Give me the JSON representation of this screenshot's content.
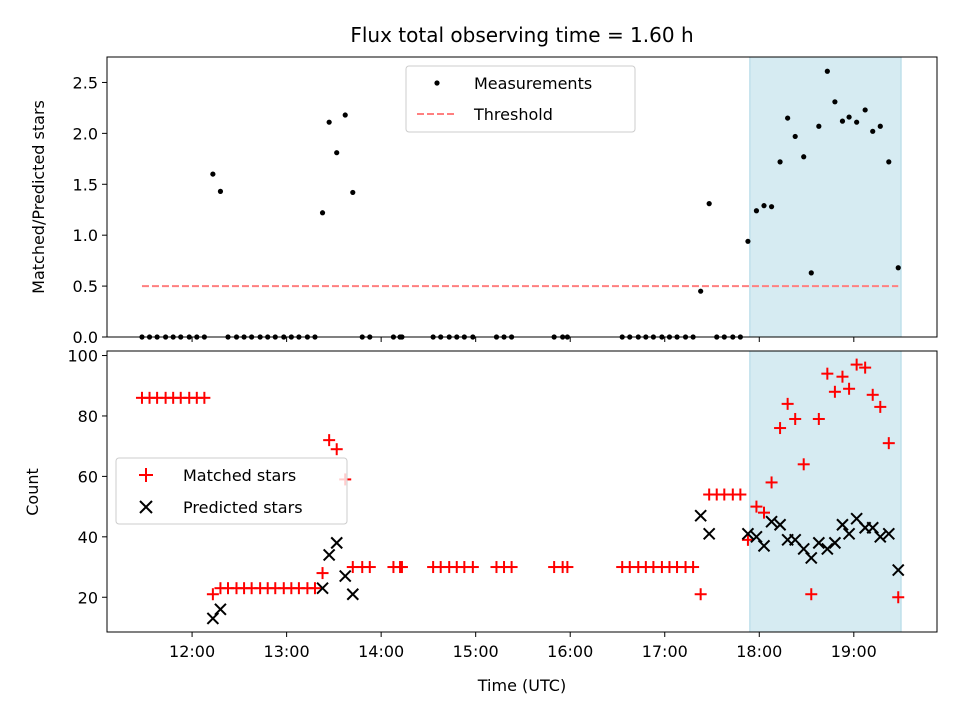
{
  "chart_data": [
    {
      "type": "scatter",
      "panel": "top",
      "title": "Flux total observing time = 1.60 h",
      "xlabel": "",
      "ylabel": "Matched/Predicted stars",
      "x_unit": "hours (UTC)",
      "xlim": [
        11.1,
        19.88
      ],
      "ylim": [
        0,
        2.75
      ],
      "yticks": [
        0.0,
        0.5,
        1.0,
        1.5,
        2.0,
        2.5
      ],
      "ytick_labels": [
        "0.0",
        "0.5",
        "1.0",
        "1.5",
        "2.0",
        "2.5"
      ],
      "highlight_span": {
        "x0": 17.9,
        "x1": 19.5,
        "color": "#add8e6"
      },
      "legend": {
        "position": "top-center",
        "entries": [
          "Measurements",
          "Threshold"
        ]
      },
      "series": [
        {
          "name": "Measurements",
          "color": "#000000",
          "marker": "dot",
          "points": [
            [
              11.47,
              0
            ],
            [
              11.55,
              0
            ],
            [
              11.63,
              0
            ],
            [
              11.72,
              0
            ],
            [
              11.8,
              0
            ],
            [
              11.88,
              0
            ],
            [
              11.97,
              0
            ],
            [
              12.05,
              0
            ],
            [
              12.13,
              0
            ],
            [
              12.22,
              1.6
            ],
            [
              12.3,
              1.43
            ],
            [
              12.38,
              0
            ],
            [
              12.47,
              0
            ],
            [
              12.55,
              0
            ],
            [
              12.63,
              0
            ],
            [
              12.72,
              0
            ],
            [
              12.8,
              0
            ],
            [
              12.88,
              0
            ],
            [
              12.97,
              0
            ],
            [
              13.05,
              0
            ],
            [
              13.13,
              0
            ],
            [
              13.22,
              0
            ],
            [
              13.3,
              0
            ],
            [
              13.38,
              1.22
            ],
            [
              13.45,
              2.11
            ],
            [
              13.53,
              1.81
            ],
            [
              13.62,
              2.18
            ],
            [
              13.7,
              1.42
            ],
            [
              13.8,
              0
            ],
            [
              13.88,
              0
            ],
            [
              14.13,
              0
            ],
            [
              14.2,
              0
            ],
            [
              14.22,
              0
            ],
            [
              14.55,
              0
            ],
            [
              14.63,
              0
            ],
            [
              14.72,
              0
            ],
            [
              14.8,
              0
            ],
            [
              14.88,
              0
            ],
            [
              14.97,
              0
            ],
            [
              15.22,
              0
            ],
            [
              15.3,
              0
            ],
            [
              15.38,
              0
            ],
            [
              15.83,
              0
            ],
            [
              15.92,
              0
            ],
            [
              15.97,
              0
            ],
            [
              16.55,
              0
            ],
            [
              16.63,
              0
            ],
            [
              16.72,
              0
            ],
            [
              16.8,
              0
            ],
            [
              16.88,
              0
            ],
            [
              16.97,
              0
            ],
            [
              17.05,
              0
            ],
            [
              17.13,
              0
            ],
            [
              17.22,
              0
            ],
            [
              17.3,
              0
            ],
            [
              17.38,
              0.45
            ],
            [
              17.47,
              1.31
            ],
            [
              17.55,
              0
            ],
            [
              17.63,
              0
            ],
            [
              17.72,
              0
            ],
            [
              17.8,
              0
            ],
            [
              17.88,
              0.94
            ],
            [
              17.97,
              1.24
            ],
            [
              18.05,
              1.29
            ],
            [
              18.13,
              1.28
            ],
            [
              18.22,
              1.72
            ],
            [
              18.3,
              2.15
            ],
            [
              18.38,
              1.97
            ],
            [
              18.47,
              1.77
            ],
            [
              18.55,
              0.63
            ],
            [
              18.63,
              2.07
            ],
            [
              18.72,
              2.61
            ],
            [
              18.8,
              2.31
            ],
            [
              18.88,
              2.12
            ],
            [
              18.95,
              2.16
            ],
            [
              19.03,
              2.11
            ],
            [
              19.12,
              2.23
            ],
            [
              19.2,
              2.02
            ],
            [
              19.28,
              2.07
            ],
            [
              19.37,
              1.72
            ],
            [
              19.47,
              0.68
            ]
          ]
        },
        {
          "name": "Threshold",
          "color": "#ff7f7f",
          "style": "dashed",
          "x": [
            11.47,
            19.47
          ],
          "y": [
            0.5,
            0.5
          ]
        }
      ]
    },
    {
      "type": "scatter",
      "panel": "bottom",
      "xlabel": "Time (UTC)",
      "ylabel": "Count",
      "xlim": [
        11.1,
        19.88
      ],
      "ylim": [
        8.5,
        101.5
      ],
      "xticks": [
        12,
        13,
        14,
        15,
        16,
        17,
        18,
        19
      ],
      "xtick_labels": [
        "12:00",
        "13:00",
        "14:00",
        "15:00",
        "16:00",
        "17:00",
        "18:00",
        "19:00"
      ],
      "yticks": [
        20,
        40,
        60,
        80,
        100
      ],
      "ytick_labels": [
        "20",
        "40",
        "60",
        "80",
        "100"
      ],
      "highlight_span": {
        "x0": 17.9,
        "x1": 19.5,
        "color": "#add8e6"
      },
      "legend": {
        "position": "center-left",
        "entries": [
          "Matched stars",
          "Predicted stars"
        ]
      },
      "series": [
        {
          "name": "Matched stars",
          "color": "#ff0000",
          "marker": "plus",
          "points": [
            [
              11.47,
              86
            ],
            [
              11.55,
              86
            ],
            [
              11.63,
              86
            ],
            [
              11.72,
              86
            ],
            [
              11.8,
              86
            ],
            [
              11.88,
              86
            ],
            [
              11.97,
              86
            ],
            [
              12.05,
              86
            ],
            [
              12.13,
              86
            ],
            [
              12.22,
              21
            ],
            [
              12.3,
              23
            ],
            [
              12.38,
              23
            ],
            [
              12.47,
              23
            ],
            [
              12.55,
              23
            ],
            [
              12.63,
              23
            ],
            [
              12.72,
              23
            ],
            [
              12.8,
              23
            ],
            [
              12.88,
              23
            ],
            [
              12.97,
              23
            ],
            [
              13.05,
              23
            ],
            [
              13.13,
              23
            ],
            [
              13.22,
              23
            ],
            [
              13.3,
              23
            ],
            [
              13.38,
              28
            ],
            [
              13.45,
              72
            ],
            [
              13.53,
              69
            ],
            [
              13.62,
              59
            ],
            [
              13.7,
              30
            ],
            [
              13.8,
              30
            ],
            [
              13.88,
              30
            ],
            [
              14.13,
              30
            ],
            [
              14.2,
              30
            ],
            [
              14.22,
              30
            ],
            [
              14.55,
              30
            ],
            [
              14.63,
              30
            ],
            [
              14.72,
              30
            ],
            [
              14.8,
              30
            ],
            [
              14.88,
              30
            ],
            [
              14.97,
              30
            ],
            [
              15.22,
              30
            ],
            [
              15.3,
              30
            ],
            [
              15.38,
              30
            ],
            [
              15.83,
              30
            ],
            [
              15.92,
              30
            ],
            [
              15.97,
              30
            ],
            [
              16.55,
              30
            ],
            [
              16.63,
              30
            ],
            [
              16.72,
              30
            ],
            [
              16.8,
              30
            ],
            [
              16.88,
              30
            ],
            [
              16.97,
              30
            ],
            [
              17.05,
              30
            ],
            [
              17.13,
              30
            ],
            [
              17.22,
              30
            ],
            [
              17.3,
              30
            ],
            [
              17.38,
              21
            ],
            [
              17.47,
              54
            ],
            [
              17.55,
              54
            ],
            [
              17.63,
              54
            ],
            [
              17.72,
              54
            ],
            [
              17.8,
              54
            ],
            [
              17.88,
              39
            ],
            [
              17.97,
              50
            ],
            [
              18.05,
              48
            ],
            [
              18.13,
              58
            ],
            [
              18.22,
              76
            ],
            [
              18.3,
              84
            ],
            [
              18.38,
              79
            ],
            [
              18.47,
              64
            ],
            [
              18.55,
              21
            ],
            [
              18.63,
              79
            ],
            [
              18.72,
              94
            ],
            [
              18.8,
              88
            ],
            [
              18.88,
              93
            ],
            [
              18.95,
              89
            ],
            [
              19.03,
              97
            ],
            [
              19.12,
              96
            ],
            [
              19.2,
              87
            ],
            [
              19.28,
              83
            ],
            [
              19.37,
              71
            ],
            [
              19.47,
              20
            ]
          ]
        },
        {
          "name": "Predicted stars",
          "color": "#000000",
          "marker": "x",
          "points": [
            [
              12.22,
              13
            ],
            [
              12.3,
              16
            ],
            [
              13.38,
              23
            ],
            [
              13.45,
              34
            ],
            [
              13.53,
              38
            ],
            [
              13.62,
              27
            ],
            [
              13.7,
              21
            ],
            [
              17.38,
              47
            ],
            [
              17.47,
              41
            ],
            [
              17.88,
              41
            ],
            [
              17.97,
              40
            ],
            [
              18.05,
              37
            ],
            [
              18.13,
              45
            ],
            [
              18.22,
              44
            ],
            [
              18.3,
              39
            ],
            [
              18.38,
              39
            ],
            [
              18.47,
              36
            ],
            [
              18.55,
              33
            ],
            [
              18.63,
              38
            ],
            [
              18.72,
              36
            ],
            [
              18.8,
              38
            ],
            [
              18.88,
              44
            ],
            [
              18.95,
              41
            ],
            [
              19.03,
              46
            ],
            [
              19.12,
              43
            ],
            [
              19.2,
              43
            ],
            [
              19.28,
              40
            ],
            [
              19.37,
              41
            ],
            [
              19.47,
              29
            ]
          ]
        }
      ]
    }
  ]
}
